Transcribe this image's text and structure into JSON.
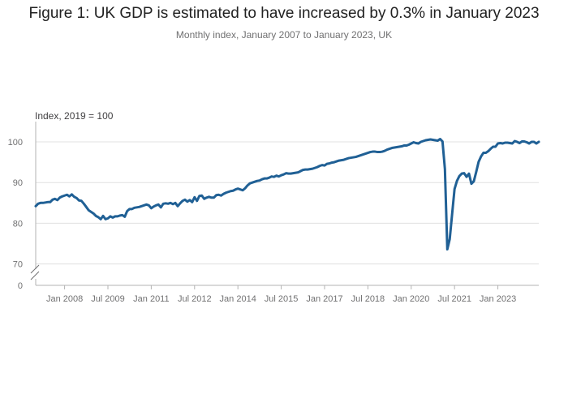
{
  "title": "Figure 1: UK GDP is estimated to have increased by 0.3% in January 2023",
  "subtitle": "Monthly index, January 2007 to January 2023, UK",
  "chart_data": {
    "type": "line",
    "title": "Figure 1: UK GDP is estimated to have increased by 0.3% in January 2023",
    "subtitle": "Monthly index, January 2007 to January 2023, UK",
    "ylabel": "Index, 2019 = 100",
    "xlabel": "",
    "axis_break": true,
    "ylim": [
      70,
      104
    ],
    "yticks": [
      0,
      70,
      80,
      90,
      100
    ],
    "xtick_labels": [
      "Jan 2008",
      "Jul 2009",
      "Jan 2011",
      "Jul 2012",
      "Jan 2014",
      "Jul 2015",
      "Jan 2017",
      "Jul 2018",
      "Jan 2020",
      "Jul 2021",
      "Jan 2023"
    ],
    "grid": "horizontal",
    "line_color": "#206095",
    "series": [
      {
        "x_start": "2007-01",
        "frequency": "monthly",
        "values": [
          84.2,
          84.8,
          85.0,
          85.0,
          85.1,
          85.2,
          85.2,
          85.8,
          86.0,
          85.7,
          86.3,
          86.6,
          86.8,
          87.0,
          86.6,
          87.1,
          86.5,
          86.2,
          85.6,
          85.5,
          84.8,
          84.0,
          83.2,
          82.8,
          82.4,
          81.8,
          81.5,
          81.0,
          81.8,
          81.0,
          81.2,
          81.7,
          81.4,
          81.7,
          81.7,
          81.9,
          82.0,
          81.6,
          83.0,
          83.5,
          83.5,
          83.8,
          83.9,
          84.0,
          84.2,
          84.4,
          84.6,
          84.4,
          83.7,
          84.1,
          84.4,
          84.6,
          83.9,
          84.8,
          84.9,
          84.8,
          85.0,
          84.7,
          85.0,
          84.2,
          84.9,
          85.5,
          85.8,
          85.3,
          85.7,
          85.2,
          86.4,
          85.5,
          86.7,
          86.8,
          86.0,
          86.3,
          86.5,
          86.3,
          86.3,
          86.9,
          87.0,
          86.8,
          87.2,
          87.5,
          87.7,
          87.9,
          88.0,
          88.3,
          88.5,
          88.3,
          88.1,
          88.6,
          89.3,
          89.8,
          90.0,
          90.2,
          90.4,
          90.5,
          90.8,
          91.0,
          91.0,
          91.2,
          91.5,
          91.4,
          91.7,
          91.5,
          91.8,
          92.0,
          92.3,
          92.2,
          92.2,
          92.3,
          92.4,
          92.5,
          92.8,
          93.1,
          93.2,
          93.2,
          93.3,
          93.4,
          93.6,
          93.8,
          94.1,
          94.3,
          94.2,
          94.6,
          94.7,
          94.9,
          95.0,
          95.2,
          95.4,
          95.5,
          95.6,
          95.8,
          96.0,
          96.1,
          96.2,
          96.3,
          96.5,
          96.7,
          96.9,
          97.1,
          97.3,
          97.5,
          97.6,
          97.6,
          97.5,
          97.5,
          97.6,
          97.8,
          98.1,
          98.3,
          98.5,
          98.6,
          98.7,
          98.8,
          98.9,
          99.1,
          99.1,
          99.3,
          99.6,
          99.9,
          99.7,
          99.6,
          100.0,
          100.2,
          100.4,
          100.5,
          100.6,
          100.5,
          100.4,
          100.3,
          100.7,
          100.1,
          93.3,
          73.6,
          76.1,
          82.3,
          88.4,
          90.4,
          91.6,
          92.2,
          92.3,
          91.4,
          92.2,
          89.7,
          90.3,
          92.6,
          95.1,
          96.4,
          97.3,
          97.3,
          97.7,
          98.3,
          98.8,
          98.8,
          99.6,
          99.7,
          99.6,
          99.8,
          99.8,
          99.7,
          99.6,
          100.2,
          100.0,
          99.7,
          100.1,
          100.1,
          99.9,
          99.6,
          100.0,
          100.0,
          99.6,
          100.0
        ]
      }
    ]
  }
}
